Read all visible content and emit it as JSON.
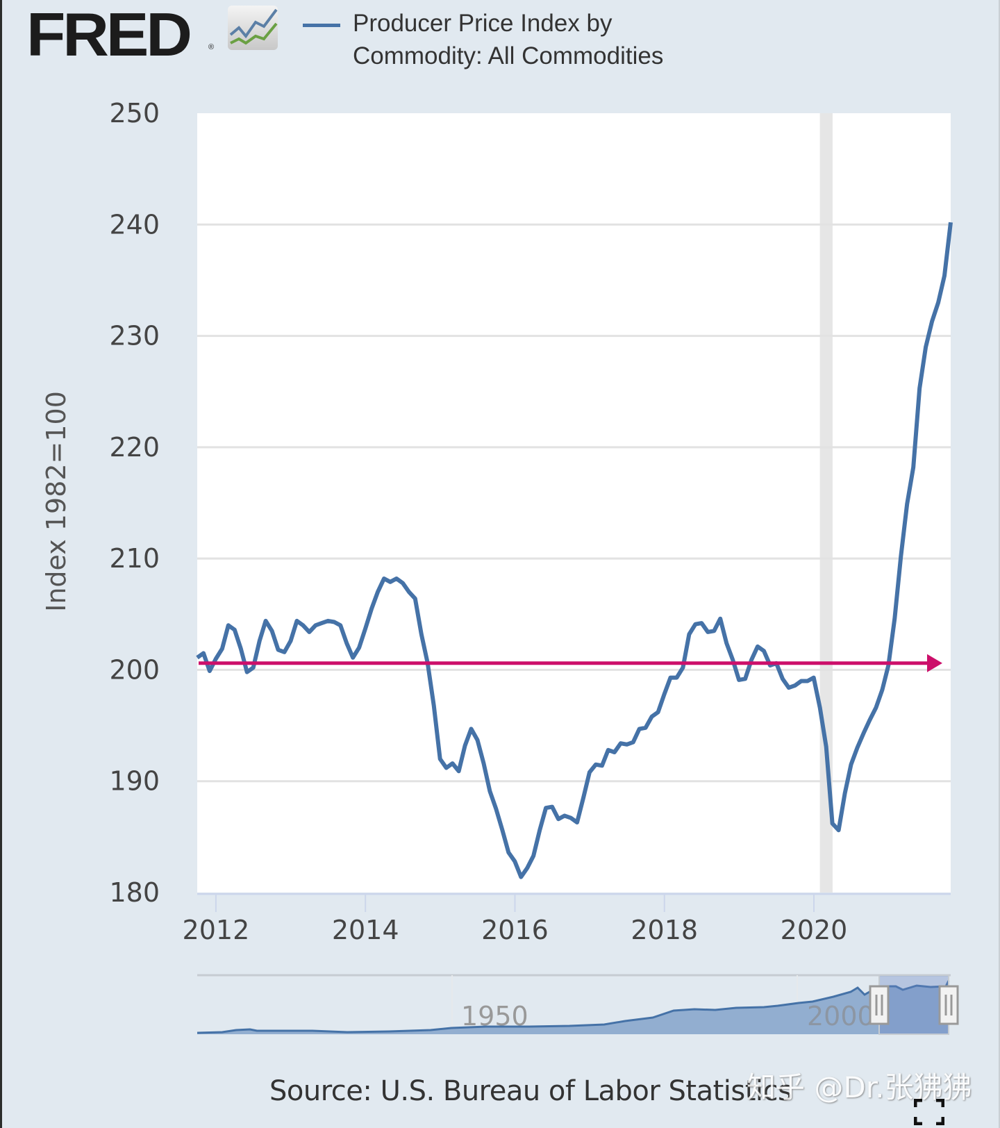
{
  "header": {
    "logo_text": "FRED",
    "logo_reg": "®",
    "logo_icon": "line-chart-icon",
    "legend_label_line1": "Producer Price Index by",
    "legend_label_line2": "Commodity: All Commodities"
  },
  "colors": {
    "series": "#4572a7",
    "annotation_arrow": "#cc0f6a",
    "recession": "#e6e6e6",
    "background": "#e1e9f0",
    "plot_bg": "#ffffff"
  },
  "footer": {
    "source": "Source: U.S. Bureau of Labor Statistics",
    "watermark": "知乎 @Dr.张狒狒",
    "fullscreen_icon": "fullscreen-icon"
  },
  "chart_data": {
    "type": "line",
    "title": "Producer Price Index by Commodity: All Commodities",
    "xlabel": "",
    "ylabel": "Index 1982=100",
    "ylim": [
      180,
      250
    ],
    "xlim": [
      2011.75,
      2021.83
    ],
    "yticks": [
      "250",
      "240",
      "230",
      "220",
      "210",
      "200",
      "190",
      "180"
    ],
    "ytick_values": [
      250,
      240,
      230,
      220,
      210,
      200,
      190,
      180
    ],
    "xticks": [
      "2012",
      "2014",
      "2016",
      "2018",
      "2020"
    ],
    "xtick_values": [
      2012,
      2014,
      2016,
      2018,
      2020
    ],
    "grid": true,
    "legend": "top",
    "recession": {
      "start": 2020.08,
      "end": 2020.25
    },
    "annotation": {
      "type": "horizontal-arrow",
      "y": 200.6,
      "direction": "right"
    },
    "navigator": {
      "labels": [
        "1950",
        "2000"
      ],
      "selected_start": 2011.75,
      "selected_end": 2021.83
    },
    "series": [
      {
        "name": "Producer Price Index by Commodity: All Commodities",
        "start": 2011.75,
        "step_months": 1,
        "values": [
          201.1,
          201.5,
          199.9,
          201.0,
          201.9,
          204.0,
          203.6,
          201.9,
          199.8,
          200.2,
          202.6,
          204.4,
          203.5,
          201.8,
          201.6,
          202.6,
          204.4,
          204.0,
          203.4,
          204.0,
          204.2,
          204.4,
          204.3,
          204.0,
          202.4,
          201.1,
          202.0,
          203.7,
          205.5,
          207.0,
          208.2,
          207.9,
          208.2,
          207.8,
          207.0,
          206.4,
          203.2,
          200.6,
          196.8,
          192.0,
          191.2,
          191.6,
          190.9,
          193.2,
          194.7,
          193.7,
          191.6,
          189.1,
          187.5,
          185.6,
          183.6,
          182.8,
          181.4,
          182.2,
          183.3,
          185.6,
          187.6,
          187.7,
          186.6,
          186.9,
          186.7,
          186.3,
          188.5,
          190.8,
          191.5,
          191.4,
          192.8,
          192.6,
          193.4,
          193.3,
          193.5,
          194.7,
          194.8,
          195.8,
          196.2,
          197.8,
          199.3,
          199.3,
          200.2,
          203.2,
          204.1,
          204.2,
          203.4,
          203.5,
          204.6,
          202.4,
          200.9,
          199.1,
          199.2,
          200.9,
          202.1,
          201.7,
          200.4,
          200.6,
          199.2,
          198.4,
          198.6,
          199.0,
          199.0,
          199.3,
          196.6,
          193.1,
          186.2,
          185.6,
          188.9,
          191.5,
          193.0,
          194.3,
          195.5,
          196.6,
          198.2,
          200.4,
          204.6,
          210.2,
          214.9,
          218.2,
          225.3,
          229.0,
          231.3,
          233.0,
          235.4,
          240.2
        ]
      }
    ]
  }
}
